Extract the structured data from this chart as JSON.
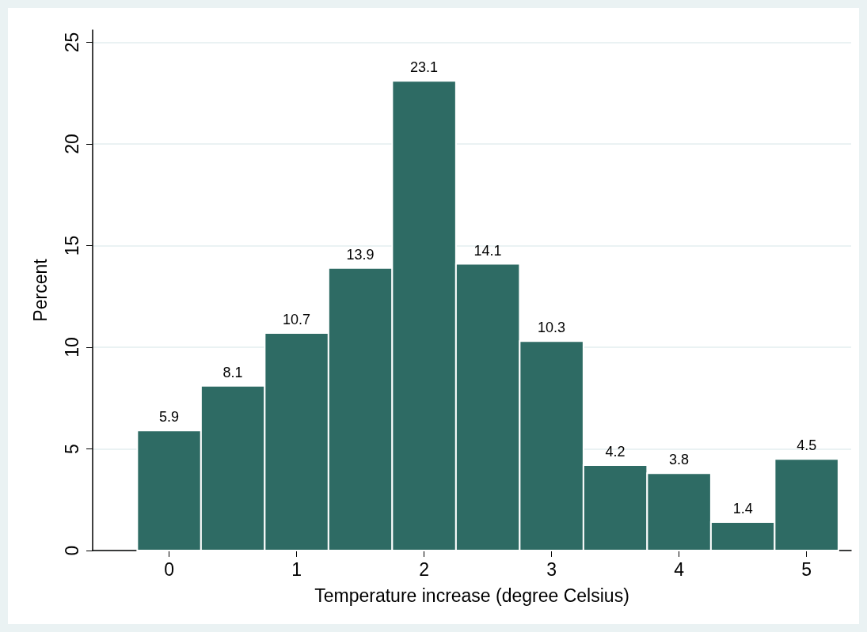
{
  "chart_data": {
    "type": "histogram",
    "xlabel": "Temperature increase (degree Celsius)",
    "ylabel": "Percent",
    "bins": [
      -0.25,
      0.25,
      0.75,
      1.25,
      1.75,
      2.25,
      2.75,
      3.25,
      3.75,
      4.25,
      4.75,
      5.25
    ],
    "values": [
      5.9,
      8.1,
      10.7,
      13.9,
      23.1,
      14.1,
      10.3,
      4.2,
      3.8,
      1.4,
      4.5
    ],
    "color": "#2e6b64",
    "data_labels": true,
    "grid": "y",
    "xlim": [
      -0.6,
      5.35
    ],
    "xticks": [
      0,
      1,
      2,
      3,
      4,
      5
    ],
    "ylim": [
      0,
      25.6
    ],
    "yticks": [
      0,
      5,
      10,
      15,
      20,
      25
    ]
  }
}
